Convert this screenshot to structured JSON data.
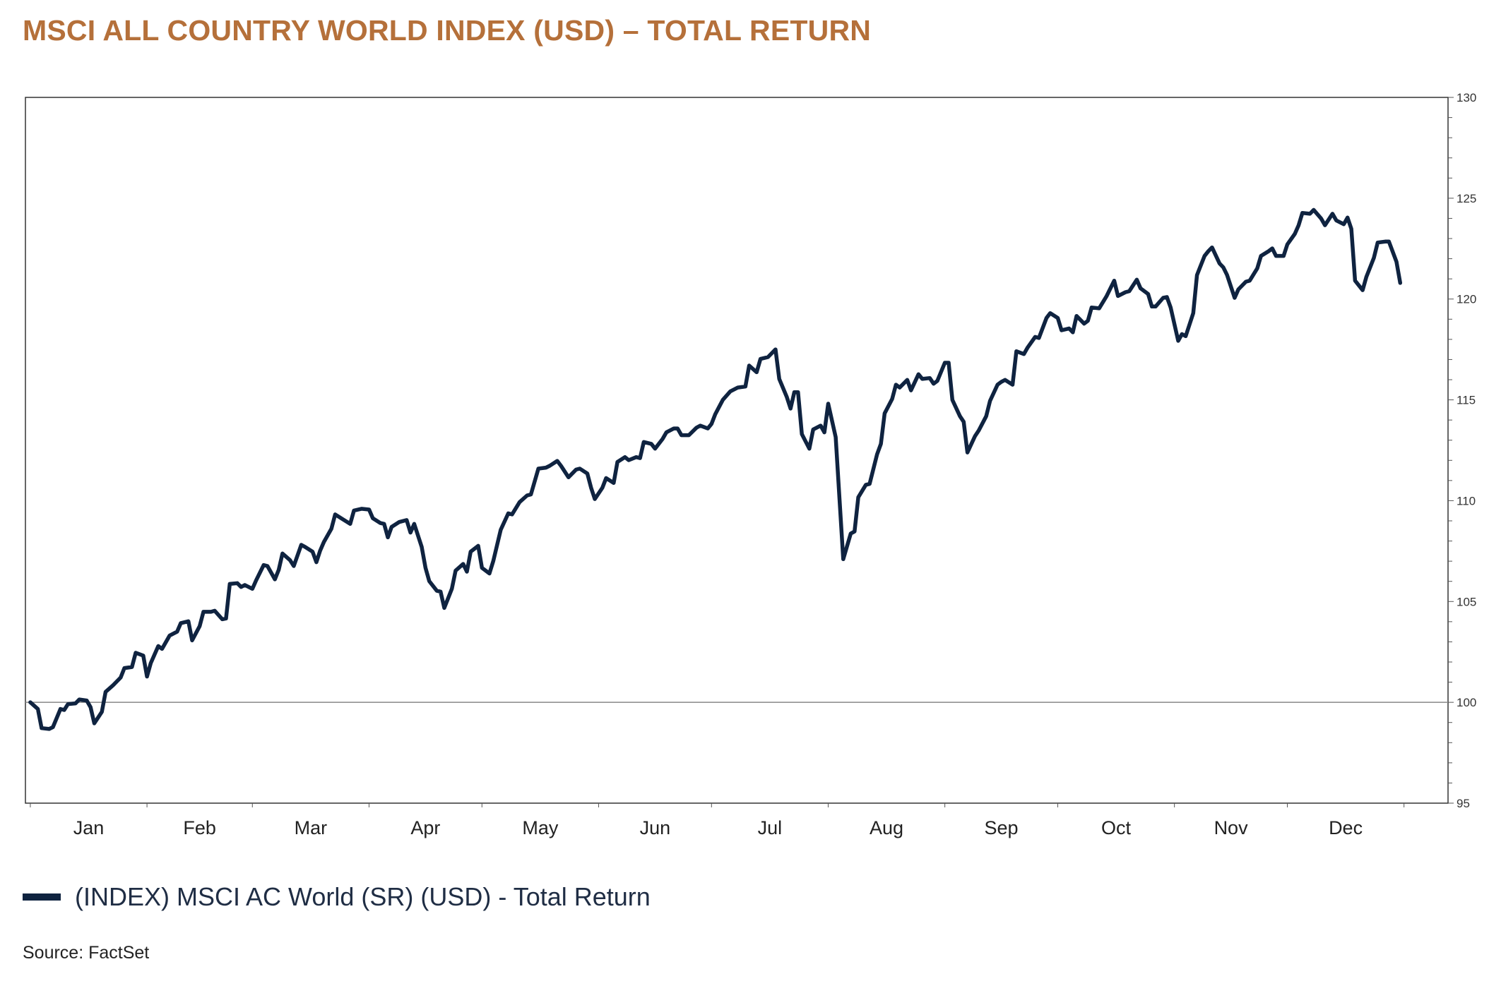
{
  "chart_data": {
    "type": "line",
    "title": "MSCI ALL COUNTRY WORLD INDEX (USD) – TOTAL RETURN",
    "xlabel": "",
    "ylabel": "",
    "ylim": [
      95,
      130
    ],
    "yticks": [
      95,
      100,
      105,
      110,
      115,
      120,
      125,
      130
    ],
    "reference_line": 100,
    "grid": false,
    "y_axis_side": "right",
    "legend_placement": "bottom-left",
    "xticklabels": [
      "Jan",
      "Feb",
      "Mar",
      "Apr",
      "May",
      "Jun",
      "Jul",
      "Aug",
      "Sep",
      "Oct",
      "Nov",
      "Dec"
    ],
    "series": [
      {
        "name": "(INDEX) MSCI AC World (SR) (USD) - Total Return",
        "color": "#0F2340",
        "points": [
          [
            "01-01",
            100.0
          ],
          [
            "01-03",
            99.67
          ],
          [
            "01-04",
            98.72
          ],
          [
            "01-06",
            98.68
          ],
          [
            "01-07",
            98.77
          ],
          [
            "01-09",
            99.67
          ],
          [
            "01-10",
            99.62
          ],
          [
            "01-11",
            99.91
          ],
          [
            "01-13",
            99.95
          ],
          [
            "01-14",
            100.14
          ],
          [
            "01-16",
            100.09
          ],
          [
            "01-17",
            99.76
          ],
          [
            "01-18",
            98.96
          ],
          [
            "01-20",
            99.53
          ],
          [
            "01-21",
            100.52
          ],
          [
            "01-23",
            100.85
          ],
          [
            "01-25",
            101.23
          ],
          [
            "01-26",
            101.7
          ],
          [
            "01-28",
            101.75
          ],
          [
            "01-29",
            102.46
          ],
          [
            "01-31",
            102.32
          ],
          [
            "02-01",
            101.28
          ],
          [
            "02-02",
            101.94
          ],
          [
            "02-04",
            102.79
          ],
          [
            "02-05",
            102.65
          ],
          [
            "02-07",
            103.31
          ],
          [
            "02-09",
            103.5
          ],
          [
            "02-10",
            103.93
          ],
          [
            "02-12",
            104.02
          ],
          [
            "02-13",
            103.07
          ],
          [
            "02-15",
            103.78
          ],
          [
            "02-16",
            104.49
          ],
          [
            "02-18",
            104.49
          ],
          [
            "02-19",
            104.54
          ],
          [
            "02-21",
            104.12
          ],
          [
            "02-22",
            104.16
          ],
          [
            "02-23",
            105.87
          ],
          [
            "02-25",
            105.91
          ],
          [
            "02-26",
            105.72
          ],
          [
            "02-27",
            105.82
          ],
          [
            "03-01",
            105.63
          ],
          [
            "03-02",
            106.05
          ],
          [
            "03-04",
            106.81
          ],
          [
            "03-05",
            106.76
          ],
          [
            "03-07",
            106.1
          ],
          [
            "03-08",
            106.57
          ],
          [
            "03-09",
            107.38
          ],
          [
            "03-11",
            107.05
          ],
          [
            "03-12",
            106.76
          ],
          [
            "03-14",
            107.81
          ],
          [
            "03-15",
            107.71
          ],
          [
            "03-17",
            107.47
          ],
          [
            "03-18",
            106.95
          ],
          [
            "03-19",
            107.52
          ],
          [
            "03-20",
            107.95
          ],
          [
            "03-22",
            108.61
          ],
          [
            "03-23",
            109.32
          ],
          [
            "03-25",
            109.08
          ],
          [
            "03-27",
            108.85
          ],
          [
            "03-28",
            109.51
          ],
          [
            "03-30",
            109.6
          ],
          [
            "04-01",
            109.56
          ],
          [
            "04-02",
            109.13
          ],
          [
            "04-04",
            108.89
          ],
          [
            "04-05",
            108.85
          ],
          [
            "04-06",
            108.18
          ],
          [
            "04-07",
            108.7
          ],
          [
            "04-09",
            108.94
          ],
          [
            "04-11",
            109.04
          ],
          [
            "04-12",
            108.42
          ],
          [
            "04-13",
            108.85
          ],
          [
            "04-15",
            107.71
          ],
          [
            "04-16",
            106.67
          ],
          [
            "04-17",
            106.01
          ],
          [
            "04-19",
            105.53
          ],
          [
            "04-20",
            105.49
          ],
          [
            "04-21",
            104.68
          ],
          [
            "04-23",
            105.63
          ],
          [
            "04-24",
            106.53
          ],
          [
            "04-26",
            106.86
          ],
          [
            "04-27",
            106.48
          ],
          [
            "04-28",
            107.47
          ],
          [
            "04-30",
            107.76
          ],
          [
            "05-01",
            106.67
          ],
          [
            "05-03",
            106.39
          ],
          [
            "05-04",
            107.0
          ],
          [
            "05-06",
            108.56
          ],
          [
            "05-08",
            109.37
          ],
          [
            "05-09",
            109.32
          ],
          [
            "05-11",
            109.93
          ],
          [
            "05-13",
            110.26
          ],
          [
            "05-14",
            110.31
          ],
          [
            "05-16",
            111.59
          ],
          [
            "05-18",
            111.64
          ],
          [
            "05-19",
            111.73
          ],
          [
            "05-21",
            111.97
          ],
          [
            "05-22",
            111.73
          ],
          [
            "05-24",
            111.16
          ],
          [
            "05-26",
            111.54
          ],
          [
            "05-27",
            111.59
          ],
          [
            "05-29",
            111.35
          ],
          [
            "05-30",
            110.64
          ],
          [
            "05-31",
            110.08
          ],
          [
            "06-02",
            110.64
          ],
          [
            "06-03",
            111.12
          ],
          [
            "06-05",
            110.88
          ],
          [
            "06-06",
            111.92
          ],
          [
            "06-08",
            112.16
          ],
          [
            "06-09",
            112.01
          ],
          [
            "06-11",
            112.16
          ],
          [
            "06-12",
            112.11
          ],
          [
            "06-13",
            112.91
          ],
          [
            "06-15",
            112.82
          ],
          [
            "06-16",
            112.58
          ],
          [
            "06-18",
            113.06
          ],
          [
            "06-19",
            113.39
          ],
          [
            "06-21",
            113.58
          ],
          [
            "06-22",
            113.58
          ],
          [
            "06-23",
            113.25
          ],
          [
            "06-25",
            113.25
          ],
          [
            "06-27",
            113.62
          ],
          [
            "06-28",
            113.72
          ],
          [
            "06-30",
            113.58
          ],
          [
            "07-01",
            113.81
          ],
          [
            "07-02",
            114.29
          ],
          [
            "07-04",
            115.0
          ],
          [
            "07-06",
            115.42
          ],
          [
            "07-08",
            115.61
          ],
          [
            "07-10",
            115.66
          ],
          [
            "07-11",
            116.7
          ],
          [
            "07-13",
            116.37
          ],
          [
            "07-14",
            117.03
          ],
          [
            "07-16",
            117.12
          ],
          [
            "07-18",
            117.5
          ],
          [
            "07-19",
            116.04
          ],
          [
            "07-21",
            115.14
          ],
          [
            "07-22",
            114.57
          ],
          [
            "07-23",
            115.38
          ],
          [
            "07-24",
            115.38
          ],
          [
            "07-25",
            113.3
          ],
          [
            "07-27",
            112.58
          ],
          [
            "07-28",
            113.53
          ],
          [
            "07-30",
            113.72
          ],
          [
            "07-31",
            113.39
          ],
          [
            "08-01",
            114.81
          ],
          [
            "08-03",
            113.15
          ],
          [
            "08-04",
            110.08
          ],
          [
            "08-05",
            107.1
          ],
          [
            "08-07",
            108.37
          ],
          [
            "08-08",
            108.47
          ],
          [
            "08-09",
            110.17
          ],
          [
            "08-11",
            110.79
          ],
          [
            "08-12",
            110.83
          ],
          [
            "08-14",
            112.3
          ],
          [
            "08-15",
            112.82
          ],
          [
            "08-16",
            114.33
          ],
          [
            "08-18",
            115.04
          ],
          [
            "08-19",
            115.75
          ],
          [
            "08-20",
            115.61
          ],
          [
            "08-22",
            115.99
          ],
          [
            "08-23",
            115.47
          ],
          [
            "08-25",
            116.27
          ],
          [
            "08-26",
            116.04
          ],
          [
            "08-28",
            116.08
          ],
          [
            "08-29",
            115.8
          ],
          [
            "08-30",
            115.94
          ],
          [
            "09-01",
            116.84
          ],
          [
            "09-02",
            116.84
          ],
          [
            "09-03",
            115.0
          ],
          [
            "09-05",
            114.19
          ],
          [
            "09-06",
            113.91
          ],
          [
            "09-07",
            112.39
          ],
          [
            "09-09",
            113.2
          ],
          [
            "09-10",
            113.48
          ],
          [
            "09-12",
            114.19
          ],
          [
            "09-13",
            114.95
          ],
          [
            "09-15",
            115.75
          ],
          [
            "09-16",
            115.89
          ],
          [
            "09-17",
            115.99
          ],
          [
            "09-19",
            115.75
          ],
          [
            "09-20",
            117.41
          ],
          [
            "09-22",
            117.27
          ],
          [
            "09-23",
            117.6
          ],
          [
            "09-25",
            118.12
          ],
          [
            "09-26",
            118.07
          ],
          [
            "09-28",
            119.06
          ],
          [
            "09-29",
            119.3
          ],
          [
            "10-01",
            119.06
          ],
          [
            "10-02",
            118.45
          ],
          [
            "10-04",
            118.54
          ],
          [
            "10-05",
            118.35
          ],
          [
            "10-06",
            119.16
          ],
          [
            "10-08",
            118.78
          ],
          [
            "10-09",
            118.92
          ],
          [
            "10-10",
            119.58
          ],
          [
            "10-12",
            119.54
          ],
          [
            "10-14",
            120.15
          ],
          [
            "10-16",
            120.91
          ],
          [
            "10-17",
            120.15
          ],
          [
            "10-19",
            120.34
          ],
          [
            "10-20",
            120.39
          ],
          [
            "10-22",
            120.96
          ],
          [
            "10-23",
            120.53
          ],
          [
            "10-25",
            120.25
          ],
          [
            "10-26",
            119.63
          ],
          [
            "10-27",
            119.63
          ],
          [
            "10-29",
            120.06
          ],
          [
            "10-30",
            120.1
          ],
          [
            "10-31",
            119.58
          ],
          [
            "11-02",
            117.93
          ],
          [
            "11-03",
            118.26
          ],
          [
            "11-04",
            118.16
          ],
          [
            "11-06",
            119.3
          ],
          [
            "11-07",
            121.19
          ],
          [
            "11-09",
            122.14
          ],
          [
            "11-10",
            122.37
          ],
          [
            "11-11",
            122.56
          ],
          [
            "11-13",
            121.76
          ],
          [
            "11-14",
            121.57
          ],
          [
            "11-15",
            121.19
          ],
          [
            "11-17",
            120.06
          ],
          [
            "11-18",
            120.48
          ],
          [
            "11-20",
            120.86
          ],
          [
            "11-21",
            120.91
          ],
          [
            "11-23",
            121.52
          ],
          [
            "11-24",
            122.14
          ],
          [
            "11-26",
            122.37
          ],
          [
            "11-27",
            122.51
          ],
          [
            "11-28",
            122.14
          ],
          [
            "11-30",
            122.14
          ],
          [
            "12-01",
            122.71
          ],
          [
            "12-03",
            123.23
          ],
          [
            "12-04",
            123.66
          ],
          [
            "12-05",
            124.27
          ],
          [
            "12-07",
            124.23
          ],
          [
            "12-08",
            124.42
          ],
          [
            "12-10",
            123.99
          ],
          [
            "12-11",
            123.66
          ],
          [
            "12-13",
            124.23
          ],
          [
            "12-14",
            123.9
          ],
          [
            "12-16",
            123.71
          ],
          [
            "12-17",
            124.04
          ],
          [
            "12-18",
            123.48
          ],
          [
            "12-19",
            120.91
          ],
          [
            "12-21",
            120.44
          ],
          [
            "12-22",
            121.1
          ],
          [
            "12-24",
            122.04
          ],
          [
            "12-25",
            122.8
          ],
          [
            "12-27",
            122.85
          ],
          [
            "12-28",
            122.85
          ],
          [
            "12-30",
            121.85
          ],
          [
            "12-31",
            120.8
          ]
        ]
      }
    ]
  },
  "legend": {
    "label": "(INDEX) MSCI AC World (SR) (USD) - Total Return"
  },
  "source": "Source: FactSet"
}
